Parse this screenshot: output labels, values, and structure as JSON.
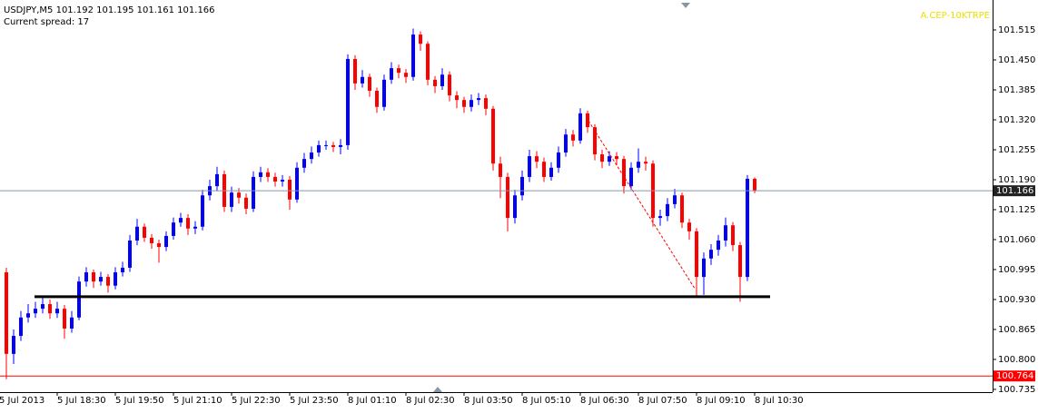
{
  "chart_data": {
    "type": "candlestick",
    "header": "USDJPY,M5  101.192 101.195 101.161 101.166",
    "subheader": "Current spread: 17",
    "note": "A.CEP-10KTRPE",
    "up_color": "#0000ff",
    "down_color": "#ff0000",
    "open": [
      100.989,
      100.812,
      100.851,
      100.891,
      100.9,
      100.91,
      100.92,
      100.9,
      100.91,
      100.867,
      100.891,
      100.969,
      100.989,
      100.969,
      100.979,
      100.96,
      100.989,
      100.999,
      101.058,
      101.088,
      101.064,
      101.052,
      101.044,
      101.068,
      101.097,
      101.107,
      101.084,
      101.088,
      101.156,
      101.176,
      101.202,
      101.131,
      101.162,
      101.151,
      101.127,
      101.196,
      101.206,
      101.196,
      101.186,
      101.19,
      101.147,
      101.216,
      101.235,
      101.249,
      101.265,
      101.265,
      101.261,
      101.265,
      101.452,
      101.399,
      101.413,
      101.383,
      101.348,
      101.407,
      101.432,
      101.422,
      101.413,
      101.505,
      101.485,
      101.407,
      101.393,
      101.418,
      101.373,
      101.363,
      101.348,
      101.363,
      101.367,
      101.344,
      101.225,
      101.196,
      101.107,
      101.156,
      101.196,
      101.241,
      101.229,
      101.196,
      101.216,
      101.249,
      101.288,
      101.275,
      101.334,
      101.304,
      101.245,
      101.229,
      101.241,
      101.235,
      101.176,
      101.216,
      101.229,
      101.225,
      101.107,
      101.111,
      101.137,
      101.156,
      101.097,
      101.078,
      100.979,
      101.019,
      101.038,
      101.058,
      101.091,
      101.048,
      100.979,
      101.192
    ],
    "high": [
      100.999,
      100.865,
      100.905,
      100.92,
      100.925,
      100.935,
      100.93,
      100.925,
      100.918,
      100.905,
      100.98,
      101.0,
      100.995,
      100.99,
      100.985,
      101.0,
      101.012,
      101.07,
      101.105,
      101.095,
      101.072,
      101.06,
      101.078,
      101.108,
      101.118,
      101.115,
      101.1,
      101.168,
      101.19,
      101.218,
      101.21,
      101.175,
      101.172,
      101.16,
      101.208,
      101.218,
      101.215,
      101.205,
      101.2,
      101.198,
      101.228,
      101.248,
      101.262,
      101.275,
      101.275,
      101.272,
      101.278,
      101.462,
      101.46,
      101.428,
      101.42,
      101.39,
      101.418,
      101.445,
      101.44,
      101.43,
      101.518,
      101.512,
      101.49,
      101.415,
      101.432,
      101.425,
      101.382,
      101.37,
      101.375,
      101.378,
      101.375,
      101.35,
      101.24,
      101.205,
      101.168,
      101.21,
      101.255,
      101.252,
      101.238,
      101.228,
      101.262,
      101.3,
      101.298,
      101.345,
      101.34,
      101.31,
      101.255,
      101.252,
      101.25,
      101.242,
      101.228,
      101.258,
      101.24,
      101.232,
      101.125,
      101.15,
      101.17,
      101.162,
      101.105,
      101.085,
      101.032,
      101.05,
      101.07,
      101.108,
      101.098,
      101.055,
      101.2,
      101.195
    ],
    "low": [
      100.757,
      100.79,
      100.84,
      100.88,
      100.89,
      100.9,
      100.888,
      100.89,
      100.845,
      100.858,
      100.885,
      100.958,
      100.955,
      100.96,
      100.945,
      100.952,
      100.98,
      100.99,
      101.048,
      101.055,
      101.04,
      101.01,
      101.035,
      101.06,
      101.088,
      101.07,
      101.072,
      101.08,
      101.145,
      101.165,
      101.12,
      101.12,
      101.138,
      101.115,
      101.12,
      101.185,
      101.185,
      101.175,
      101.175,
      101.125,
      101.14,
      101.205,
      101.225,
      101.24,
      101.255,
      101.25,
      101.245,
      101.255,
      101.385,
      101.39,
      101.37,
      101.335,
      101.34,
      101.398,
      101.41,
      101.4,
      101.405,
      101.47,
      101.395,
      101.378,
      101.385,
      101.36,
      101.345,
      101.335,
      101.338,
      101.352,
      101.33,
      101.21,
      101.15,
      101.078,
      101.095,
      101.145,
      101.185,
      101.215,
      101.185,
      101.188,
      101.205,
      101.24,
      101.262,
      101.268,
      101.292,
      101.232,
      101.215,
      101.22,
      101.222,
      101.16,
      101.168,
      101.205,
      101.21,
      101.088,
      101.09,
      101.1,
      101.128,
      101.085,
      101.06,
      100.935,
      100.94,
      101.005,
      101.025,
      101.045,
      101.035,
      100.925,
      100.97,
      101.161
    ],
    "close": [
      100.812,
      100.851,
      100.891,
      100.9,
      100.91,
      100.92,
      100.9,
      100.91,
      100.867,
      100.891,
      100.969,
      100.989,
      100.969,
      100.979,
      100.96,
      100.989,
      100.999,
      101.058,
      101.088,
      101.064,
      101.052,
      101.044,
      101.068,
      101.097,
      101.107,
      101.084,
      101.088,
      101.156,
      101.176,
      101.202,
      101.131,
      101.162,
      101.151,
      101.127,
      101.196,
      101.206,
      101.196,
      101.186,
      101.19,
      101.147,
      101.216,
      101.235,
      101.249,
      101.265,
      101.265,
      101.261,
      101.265,
      101.452,
      101.399,
      101.413,
      101.383,
      101.348,
      101.407,
      101.432,
      101.422,
      101.413,
      101.505,
      101.485,
      101.407,
      101.393,
      101.418,
      101.373,
      101.363,
      101.348,
      101.363,
      101.367,
      101.344,
      101.225,
      101.196,
      101.107,
      101.156,
      101.196,
      101.241,
      101.229,
      101.196,
      101.216,
      101.249,
      101.288,
      101.275,
      101.334,
      101.304,
      101.245,
      101.229,
      101.241,
      101.235,
      101.176,
      101.216,
      101.229,
      101.225,
      101.107,
      101.111,
      101.137,
      101.156,
      101.097,
      101.078,
      100.979,
      101.019,
      101.038,
      101.058,
      101.091,
      101.048,
      100.979,
      101.192,
      101.166
    ],
    "xlim": [
      -0.875,
      135.75
    ],
    "xticks": [
      {
        "value": -1,
        "label": "5 Jul 2013"
      },
      {
        "value": 7,
        "label": "5 Jul 18:30"
      },
      {
        "value": 15,
        "label": "5 Jul 19:50"
      },
      {
        "value": 23,
        "label": "5 Jul 21:10"
      },
      {
        "value": 31,
        "label": "5 Jul 22:30"
      },
      {
        "value": 39,
        "label": "5 Jul 23:50"
      },
      {
        "value": 47,
        "label": "8 Jul 01:10"
      },
      {
        "value": 55,
        "label": "8 Jul 02:30"
      },
      {
        "value": 63,
        "label": "8 Jul 03:50"
      },
      {
        "value": 71,
        "label": "8 Jul 05:10"
      },
      {
        "value": 79,
        "label": "8 Jul 06:30"
      },
      {
        "value": 87,
        "label": "8 Jul 07:50"
      },
      {
        "value": 95,
        "label": "8 Jul 09:10"
      },
      {
        "value": 103,
        "label": "8 Jul 10:30"
      }
    ],
    "ylim": [
      100.729,
      101.58
    ],
    "yticks": [
      101.515,
      {
        "value": 101.45,
        "label": "101.450"
      },
      101.385,
      {
        "value": 101.32,
        "label": "101.320"
      },
      101.255,
      {
        "value": 101.19,
        "label": "101.190"
      },
      101.125,
      {
        "value": 101.06,
        "label": "101.060"
      },
      100.995,
      {
        "value": 100.93,
        "label": "100.930"
      },
      100.865,
      {
        "value": 100.8,
        "label": "100.800"
      },
      100.735
    ],
    "lines": [
      {
        "value": 101.166,
        "color": "#8497a8"
      },
      {
        "value": 100.764,
        "color": "#ff0000"
      }
    ],
    "support_line": {
      "value": 100.936,
      "x": [
        3.875,
        105.125
      ],
      "color": "#000000"
    },
    "trendline": {
      "x": [
        80.125,
        94.75
      ],
      "y": [
        101.318,
        100.954
      ],
      "color": "#ff0000"
    }
  }
}
